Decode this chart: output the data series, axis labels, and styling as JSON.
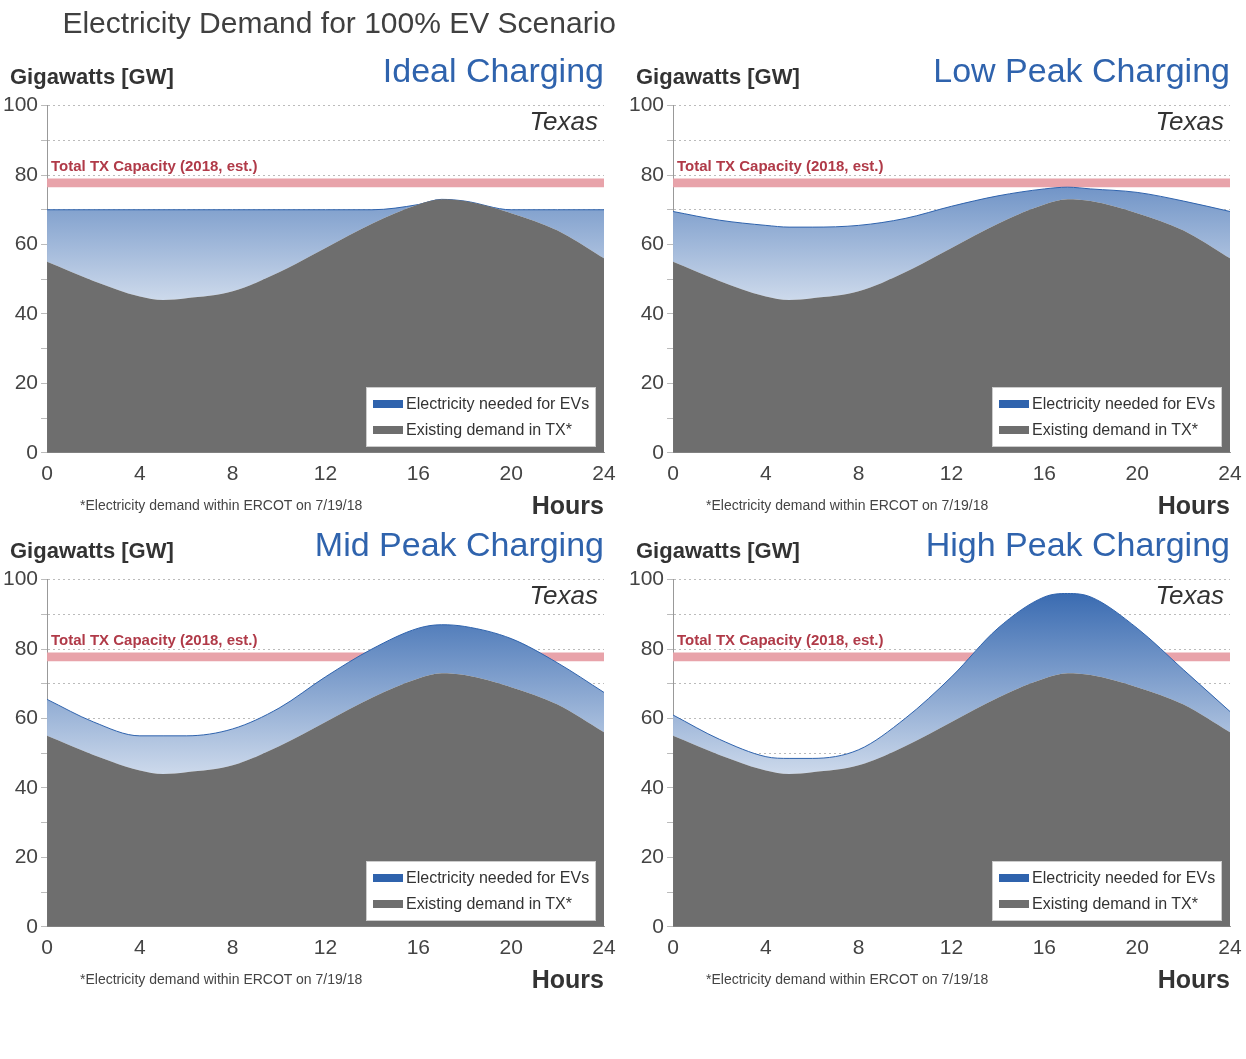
{
  "chart_data": [
    {
      "type": "area",
      "title": "Electricity Demand for 100% EV Scenario",
      "subtitle": "Ideal Charging",
      "ylabel": "Gigawatts [GW]",
      "xlabel": "Hours",
      "stacked": true,
      "legend": "bottom right",
      "grid": "y",
      "annotations": [
        "Texas",
        "*Electricity demand within ERCOT on 7/19/18"
      ],
      "bands": [
        {
          "axis": "y",
          "from": 76.5,
          "to": 79,
          "label": "Total TX Capacity (2018, est.)",
          "color": "#e8a3aa"
        }
      ],
      "x": [
        0,
        2,
        4,
        5,
        6,
        8,
        10,
        12,
        14,
        16,
        17,
        18,
        20,
        22,
        24
      ],
      "xlim": [
        0,
        24
      ],
      "xticks": [
        0,
        4,
        8,
        12,
        16,
        20,
        24
      ],
      "ylim": [
        0,
        100
      ],
      "yticks": [
        0,
        {
          "value": 10,
          "label": null
        },
        20,
        {
          "value": 30,
          "label": null
        },
        40,
        {
          "value": 50,
          "label": null
        },
        60,
        {
          "value": 70,
          "label": null
        },
        80,
        {
          "value": 90,
          "label": null
        },
        100
      ],
      "series": [
        {
          "name": "Existing demand in TX*",
          "color": "#6e6e6e",
          "values": [
            55,
            49.5,
            45,
            44,
            44.5,
            46.5,
            52,
            59,
            66,
            71.5,
            73,
            72.5,
            69,
            64,
            56
          ]
        },
        {
          "name": "Electricity needed for EVs",
          "color": "#2f63ad",
          "values": [
            15,
            20.5,
            25,
            26,
            25.5,
            23.5,
            18,
            11,
            4,
            0,
            0,
            0,
            1,
            6,
            14
          ]
        }
      ]
    },
    {
      "type": "area",
      "subtitle": "Low Peak Charging",
      "ylabel": "Gigawatts [GW]",
      "xlabel": "Hours",
      "stacked": true,
      "legend": "bottom right",
      "grid": "y",
      "annotations": [
        "Texas",
        "*Electricity demand within ERCOT on 7/19/18"
      ],
      "bands": [
        {
          "axis": "y",
          "from": 76.5,
          "to": 79,
          "label": "Total TX Capacity (2018, est.)",
          "color": "#e8a3aa"
        }
      ],
      "x": [
        0,
        2,
        4,
        5,
        6,
        8,
        10,
        12,
        14,
        16,
        17,
        18,
        20,
        22,
        24
      ],
      "xlim": [
        0,
        24
      ],
      "xticks": [
        0,
        4,
        8,
        12,
        16,
        20,
        24
      ],
      "ylim": [
        0,
        100
      ],
      "yticks": [
        0,
        {
          "value": 10,
          "label": null
        },
        20,
        {
          "value": 30,
          "label": null
        },
        40,
        {
          "value": 50,
          "label": null
        },
        60,
        {
          "value": 70,
          "label": null
        },
        80,
        {
          "value": 90,
          "label": null
        },
        100
      ],
      "series": [
        {
          "name": "Existing demand in TX*",
          "color": "#6e6e6e",
          "values": [
            55,
            49.5,
            45,
            44,
            44.5,
            46.5,
            52,
            59,
            66,
            71.5,
            73,
            72.5,
            69,
            64,
            56
          ]
        },
        {
          "name": "Electricity needed for EVs",
          "color": "#2f63ad",
          "values": [
            14.5,
            17.5,
            20.5,
            21,
            20.5,
            19,
            15.5,
            12,
            8,
            4.5,
            3.5,
            3.5,
            6,
            8.5,
            13.5
          ]
        }
      ]
    },
    {
      "type": "area",
      "subtitle": "Mid Peak Charging",
      "ylabel": "Gigawatts [GW]",
      "xlabel": "Hours",
      "stacked": true,
      "legend": "bottom right",
      "grid": "y",
      "annotations": [
        "Texas",
        "*Electricity demand within ERCOT on 7/19/18"
      ],
      "bands": [
        {
          "axis": "y",
          "from": 76.5,
          "to": 79,
          "label": "Total TX Capacity (2018, est.)",
          "color": "#e8a3aa"
        }
      ],
      "x": [
        0,
        2,
        4,
        5,
        6,
        8,
        10,
        12,
        14,
        16,
        17,
        18,
        20,
        22,
        24
      ],
      "xlim": [
        0,
        24
      ],
      "xticks": [
        0,
        4,
        8,
        12,
        16,
        20,
        24
      ],
      "ylim": [
        0,
        100
      ],
      "yticks": [
        0,
        {
          "value": 10,
          "label": null
        },
        20,
        {
          "value": 30,
          "label": null
        },
        40,
        {
          "value": 50,
          "label": null
        },
        60,
        {
          "value": 70,
          "label": null
        },
        80,
        {
          "value": 90,
          "label": null
        },
        100
      ],
      "series": [
        {
          "name": "Existing demand in TX*",
          "color": "#6e6e6e",
          "values": [
            55,
            49.5,
            45,
            44,
            44.5,
            46.5,
            52,
            59,
            66,
            71.5,
            73,
            72.5,
            69,
            64,
            56
          ]
        },
        {
          "name": "Electricity needed for EVs",
          "color": "#2f63ad",
          "values": [
            10.5,
            9.5,
            10,
            11,
            10.5,
            10.5,
            11,
            13,
            14,
            14.5,
            14,
            14,
            14,
            12,
            11.5
          ]
        }
      ]
    },
    {
      "type": "area",
      "subtitle": "High Peak Charging",
      "ylabel": "Gigawatts [GW]",
      "xlabel": "Hours",
      "stacked": true,
      "legend": "bottom right",
      "grid": "y",
      "annotations": [
        "Texas",
        "*Electricity demand within ERCOT on 7/19/18"
      ],
      "bands": [
        {
          "axis": "y",
          "from": 76.5,
          "to": 79,
          "label": "Total TX Capacity (2018, est.)",
          "color": "#e8a3aa"
        }
      ],
      "x": [
        0,
        2,
        4,
        5,
        6,
        8,
        10,
        12,
        14,
        16,
        17,
        18,
        20,
        22,
        24
      ],
      "xlim": [
        0,
        24
      ],
      "xticks": [
        0,
        4,
        8,
        12,
        16,
        20,
        24
      ],
      "ylim": [
        0,
        100
      ],
      "yticks": [
        0,
        {
          "value": 10,
          "label": null
        },
        20,
        {
          "value": 30,
          "label": null
        },
        40,
        {
          "value": 50,
          "label": null
        },
        60,
        {
          "value": 70,
          "label": null
        },
        80,
        {
          "value": 90,
          "label": null
        },
        100
      ],
      "series": [
        {
          "name": "Existing demand in TX*",
          "color": "#6e6e6e",
          "values": [
            55,
            49.5,
            45,
            44,
            44.5,
            46.5,
            52,
            59,
            66,
            71.5,
            73,
            72.5,
            69,
            64,
            56
          ]
        },
        {
          "name": "Electricity needed for EVs",
          "color": "#2f63ad",
          "values": [
            6,
            4.5,
            4,
            4.5,
            4,
            4.5,
            8,
            13,
            20,
            23.5,
            23,
            22.5,
            17,
            10,
            6
          ]
        }
      ]
    }
  ]
}
